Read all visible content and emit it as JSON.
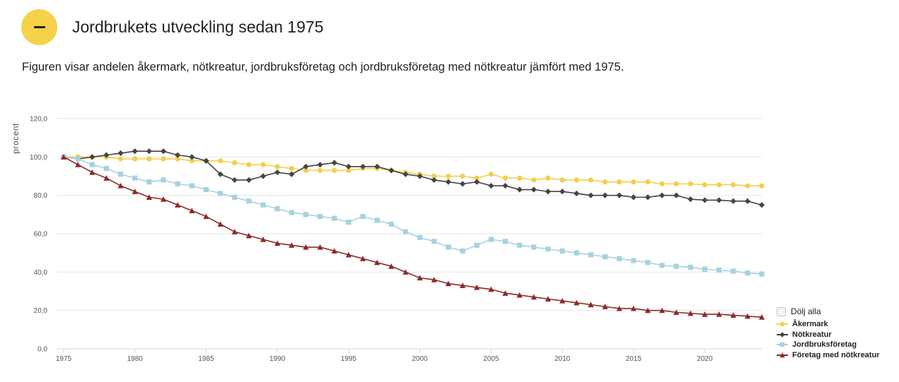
{
  "header": {
    "toggle_icon": "minus-icon",
    "title": "Jordbrukets utveckling sedan 1975",
    "description": "Figuren visar andelen åkermark, nötkreatur, jordbruksföretag och jordbruksföretag med nötkreatur jämfört med 1975."
  },
  "legend": {
    "hide_all_label": "Dölj alla"
  },
  "chart_data": {
    "type": "line",
    "title": "",
    "xlabel": "",
    "ylabel": "procent",
    "xlim": [
      1975,
      2024
    ],
    "ylim": [
      0,
      120
    ],
    "x_ticks": [
      "1975",
      "1980",
      "1985",
      "1990",
      "1995",
      "2000",
      "2005",
      "2010",
      "2015",
      "2020"
    ],
    "y_ticks": [
      "0,0",
      "20,0",
      "40,0",
      "60,0",
      "80,0",
      "100,0",
      "120,0"
    ],
    "grid": "horizontal",
    "legend_position": "bottom-right",
    "x": [
      1975,
      1976,
      1977,
      1978,
      1979,
      1980,
      1981,
      1982,
      1983,
      1984,
      1985,
      1986,
      1987,
      1988,
      1989,
      1990,
      1991,
      1992,
      1993,
      1994,
      1995,
      1996,
      1997,
      1998,
      1999,
      2000,
      2001,
      2002,
      2003,
      2004,
      2005,
      2006,
      2007,
      2008,
      2009,
      2010,
      2011,
      2012,
      2013,
      2014,
      2015,
      2016,
      2017,
      2018,
      2019,
      2020,
      2021,
      2022,
      2023,
      2024
    ],
    "series": [
      {
        "name": "Åkermark",
        "color": "#f2cf4c",
        "marker": "circle",
        "values": [
          100,
          100,
          100,
          100,
          99,
          99,
          99,
          99,
          99,
          98,
          98,
          98,
          97,
          96,
          96,
          95,
          94,
          93,
          93,
          93,
          93,
          94,
          94,
          93,
          92,
          91,
          90,
          90,
          90,
          89,
          91,
          89,
          89,
          88,
          89,
          88,
          88,
          88,
          87,
          87,
          87,
          87,
          86,
          86,
          86,
          85.5,
          85.5,
          85.5,
          85,
          85
        ]
      },
      {
        "name": "Nötkreatur",
        "color": "#444444",
        "marker": "diamond",
        "values": [
          100,
          99,
          100,
          101,
          102,
          103,
          103,
          103,
          101,
          100,
          98,
          91,
          88,
          88,
          90,
          92,
          91,
          95,
          96,
          97,
          95,
          95,
          95,
          93,
          91,
          90,
          88,
          87,
          86,
          87,
          85,
          85,
          83,
          83,
          82,
          82,
          81,
          80,
          80,
          80,
          79,
          79,
          80,
          80,
          78,
          77.5,
          77.5,
          77,
          77,
          75
        ]
      },
      {
        "name": "Jordbruksföretag",
        "color": "#a8d1de",
        "marker": "square",
        "values": [
          100,
          99,
          96,
          94,
          91,
          89,
          87,
          88,
          86,
          85,
          83,
          81,
          79,
          77,
          75,
          73,
          71,
          70,
          69,
          68,
          66,
          69,
          67,
          65,
          61,
          58,
          56,
          53,
          51,
          54,
          57,
          56,
          54,
          53,
          52,
          51,
          50,
          49,
          48,
          47,
          46,
          45,
          43.5,
          43,
          42.5,
          41.5,
          41,
          40.5,
          39.5,
          39
        ]
      },
      {
        "name": "Företag med nötkreatur",
        "color": "#8b2a28",
        "marker": "triangle",
        "values": [
          100,
          96,
          92,
          89,
          85,
          82,
          79,
          78,
          75,
          72,
          69,
          65,
          61,
          59,
          57,
          55,
          54,
          53,
          53,
          51,
          49,
          47,
          45,
          43,
          40,
          37,
          36,
          34,
          33,
          32,
          31,
          29,
          28,
          27,
          26,
          25,
          24,
          23,
          22,
          21,
          21,
          20,
          20,
          19,
          18.5,
          18,
          18,
          17.5,
          17,
          16.5
        ]
      }
    ]
  }
}
